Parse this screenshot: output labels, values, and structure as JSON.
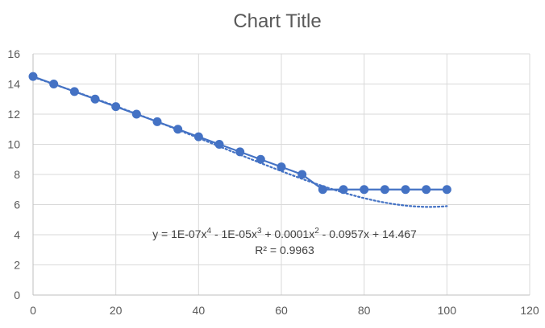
{
  "chart_data": {
    "type": "scatter",
    "title": "Chart Title",
    "xlabel": "",
    "ylabel": "",
    "xlim": [
      0,
      120
    ],
    "ylim": [
      0,
      16
    ],
    "x_ticks": [
      "0",
      "20",
      "40",
      "60",
      "80",
      "100",
      "120"
    ],
    "y_ticks": [
      "0",
      "2",
      "4",
      "6",
      "8",
      "10",
      "12",
      "14",
      "16"
    ],
    "grid": true,
    "legend": "none",
    "series": [
      {
        "x": [
          0,
          5,
          10,
          15,
          20,
          25,
          30,
          35,
          40,
          45,
          50,
          55,
          60,
          65,
          70,
          75,
          80,
          85,
          90,
          95,
          100
        ],
        "y": [
          14.5,
          14.0,
          13.5,
          13.0,
          12.5,
          12.0,
          11.5,
          11.0,
          10.5,
          10.0,
          9.5,
          9.0,
          8.5,
          8.0,
          7.0,
          7.0,
          7.0,
          7.0,
          7.0,
          7.0,
          7.0
        ],
        "color": "#4472c4",
        "line": "solid",
        "markers": true
      }
    ],
    "trendline": {
      "type": "polynomial",
      "order": 4,
      "style": "dotted",
      "color": "#4472c4",
      "coefficients": [
        1e-07,
        -1e-05,
        0.0001,
        -0.0957,
        14.467
      ],
      "equation_parts": {
        "p1": "y = 1E-07x",
        "e1": "4",
        "p2": " - 1E-05x",
        "e2": "3",
        "p3": " + 0.0001x",
        "e3": "2",
        "p4": " - 0.0957x + 14.467"
      },
      "r2_text": "R² = 0.9963"
    }
  },
  "colors": {
    "series": "#4472c4",
    "grid": "#d9d9d9",
    "axis": "#bfbfbf",
    "text": "#595959",
    "title": "#595959"
  }
}
